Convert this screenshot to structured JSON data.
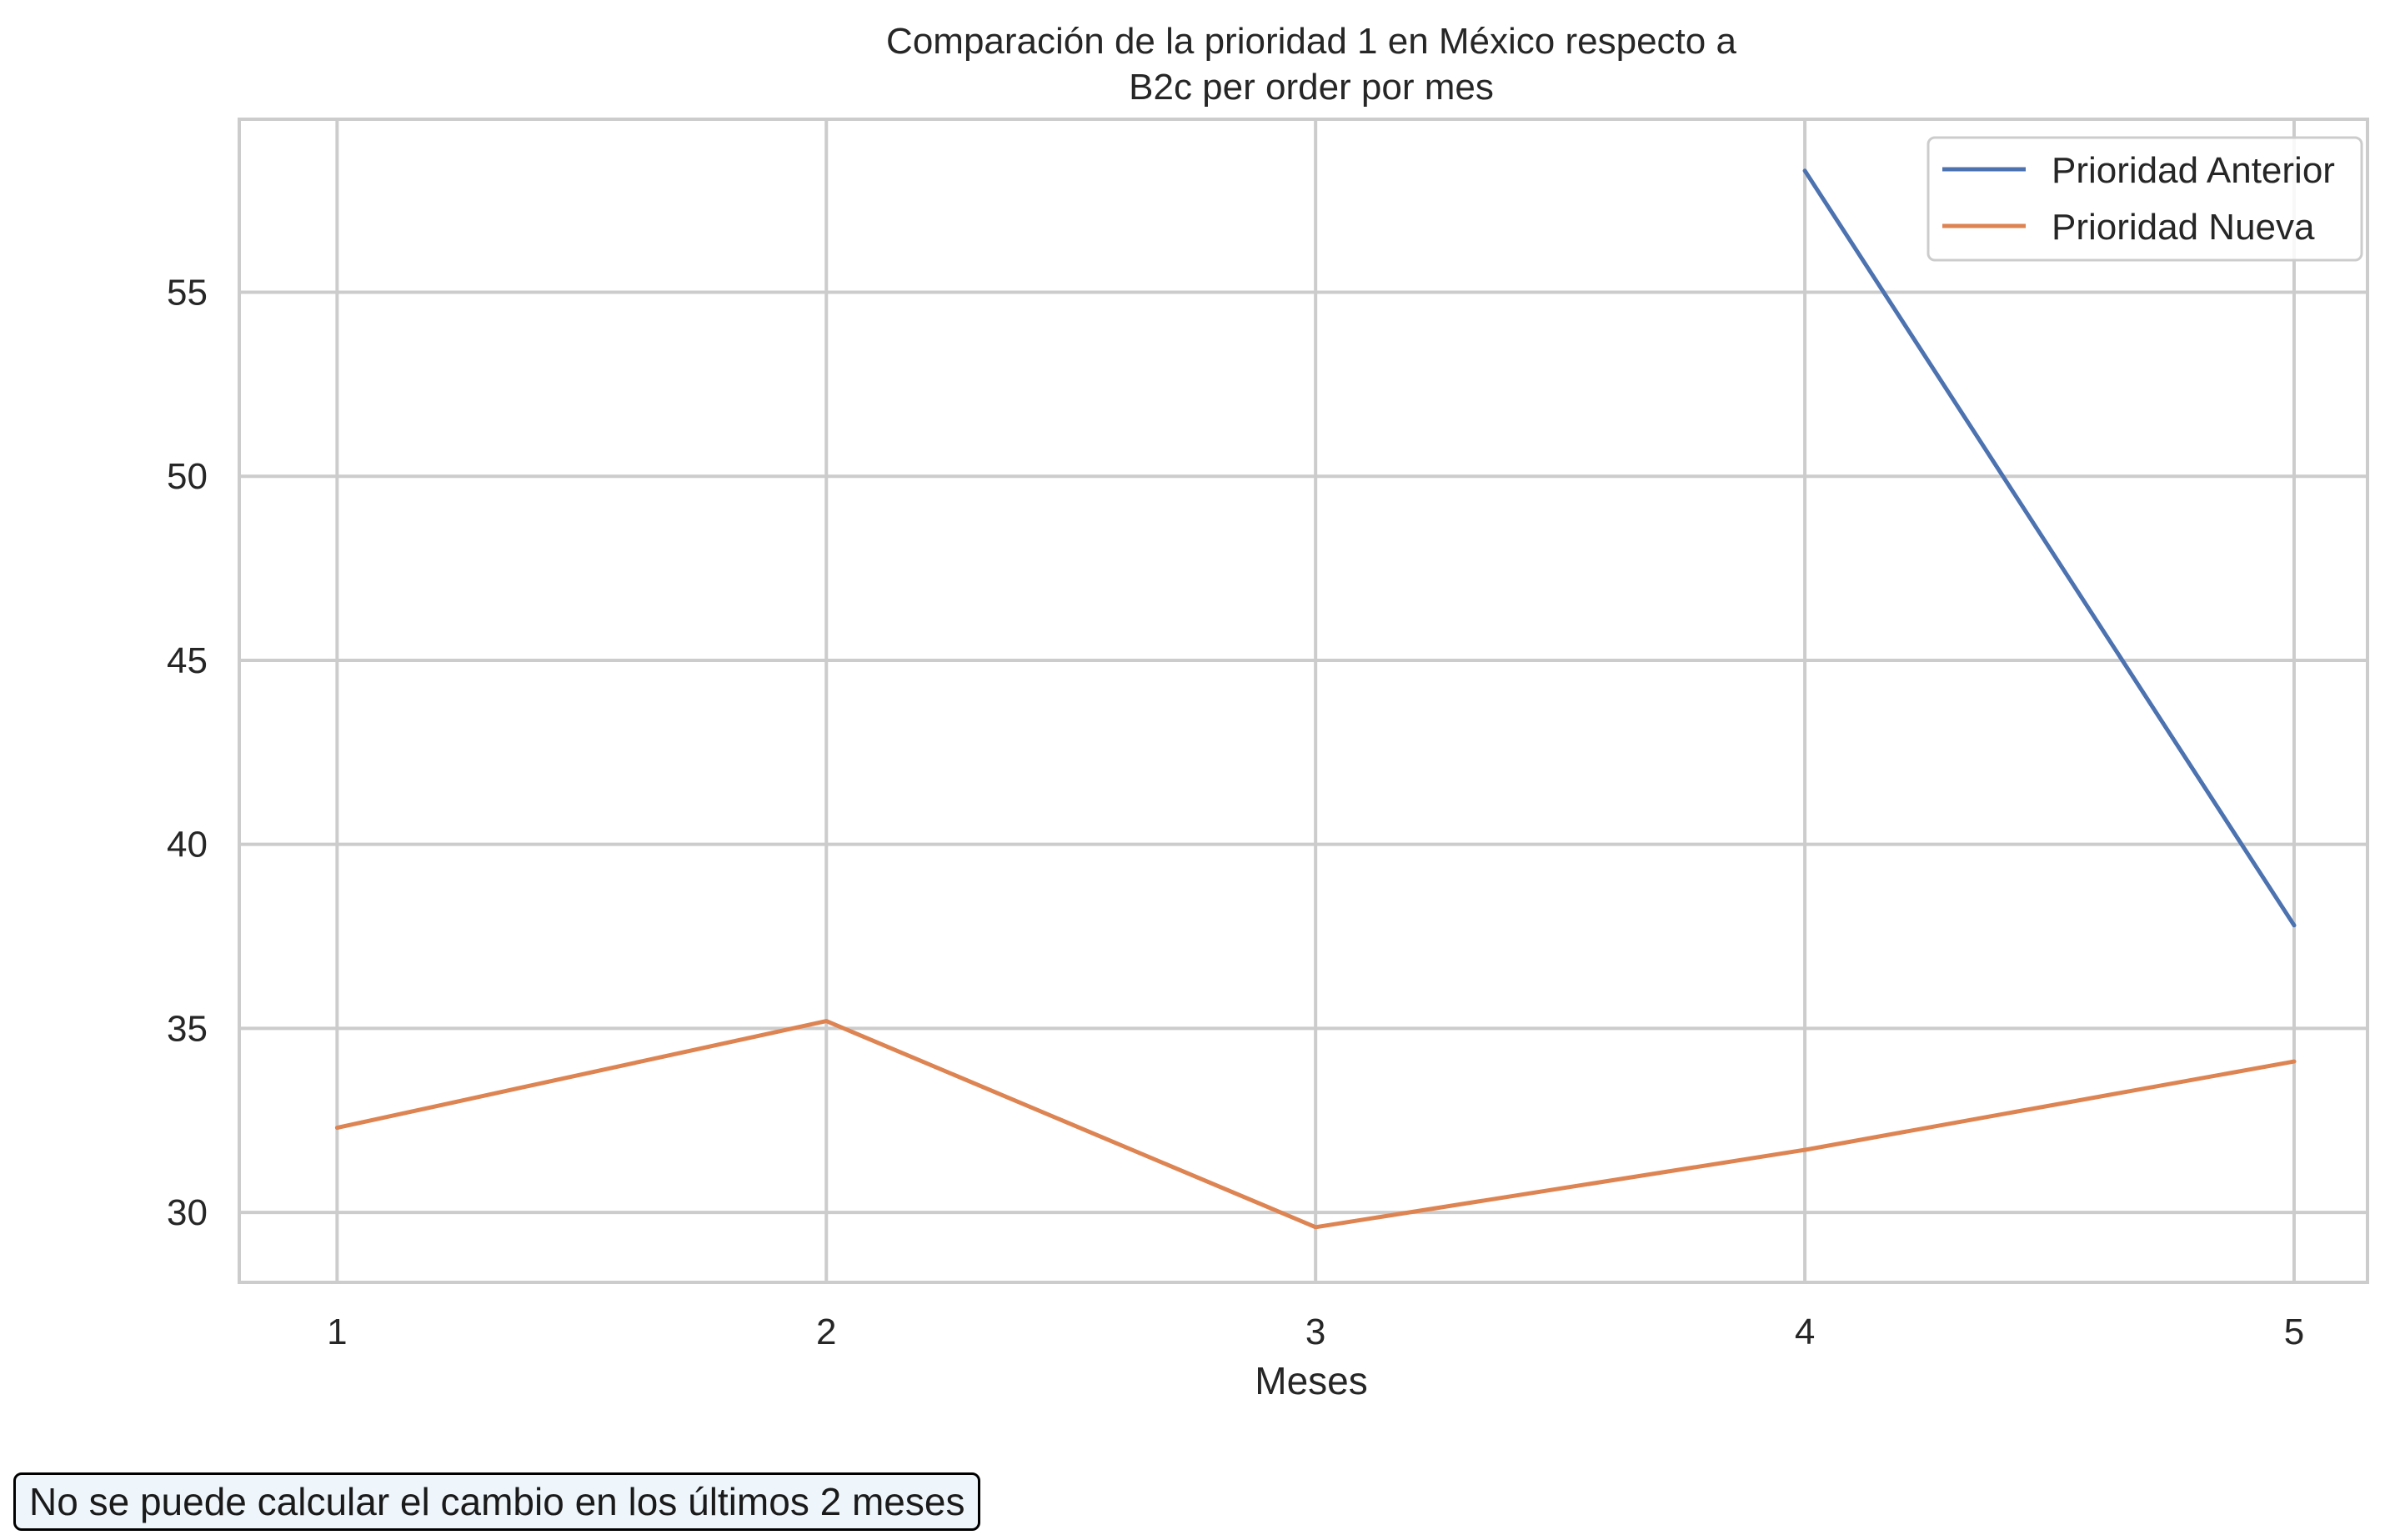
{
  "chart_data": {
    "type": "line",
    "title_line1": "Comparación de la prioridad 1 en México respecto a",
    "title_line2": "B2c per order por mes",
    "xlabel": "Meses",
    "ylabel": "",
    "x": [
      1,
      2,
      3,
      4,
      5
    ],
    "xticks": [
      "1",
      "2",
      "3",
      "4",
      "5"
    ],
    "yticks": [
      30,
      35,
      40,
      45,
      50,
      55
    ],
    "xlim": [
      0.8,
      5.15
    ],
    "ylim": [
      28.1,
      59.7
    ],
    "grid": true,
    "legend_position": "top-right",
    "series": [
      {
        "name": "Prioridad Anterior",
        "color": "#4c72b0",
        "values": [
          null,
          null,
          null,
          58.3,
          37.8
        ]
      },
      {
        "name": "Prioridad Nueva",
        "color": "#dd8452",
        "values": [
          32.3,
          35.2,
          29.6,
          31.7,
          34.1
        ]
      }
    ]
  },
  "note": {
    "text": "No se puede calcular el cambio en los últimos 2 meses"
  }
}
